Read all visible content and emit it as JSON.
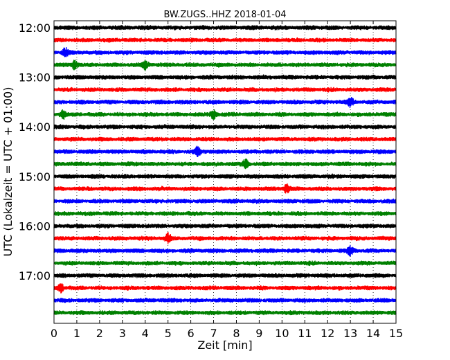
{
  "chart_data": {
    "type": "line",
    "title": "BW.ZUGS..HHZ 2018-01-04",
    "xlabel": "Zeit  [min]",
    "ylabel": "UTC (Lokalzeit = UTC + 01:00)",
    "xlim": [
      0,
      15
    ],
    "x_ticks": [
      "0",
      "1",
      "2",
      "3",
      "4",
      "5",
      "6",
      "7",
      "8",
      "9",
      "10",
      "11",
      "12",
      "13",
      "14",
      "15"
    ],
    "y_tick_labels": [
      "12:00",
      "13:00",
      "14:00",
      "15:00",
      "16:00",
      "17:00"
    ],
    "grid": "vertical dotted at each minute",
    "trace_colors": [
      "#000000",
      "#ff0000",
      "#0000ff",
      "#008000"
    ],
    "series": [
      {
        "start": "12:00",
        "color": "#000000"
      },
      {
        "start": "12:15",
        "color": "#ff0000"
      },
      {
        "start": "12:30",
        "color": "#0000ff"
      },
      {
        "start": "12:45",
        "color": "#008000"
      },
      {
        "start": "13:00",
        "color": "#000000"
      },
      {
        "start": "13:15",
        "color": "#ff0000"
      },
      {
        "start": "13:30",
        "color": "#0000ff"
      },
      {
        "start": "13:45",
        "color": "#008000"
      },
      {
        "start": "14:00",
        "color": "#000000"
      },
      {
        "start": "14:15",
        "color": "#ff0000"
      },
      {
        "start": "14:30",
        "color": "#0000ff"
      },
      {
        "start": "14:45",
        "color": "#008000"
      },
      {
        "start": "15:00",
        "color": "#000000"
      },
      {
        "start": "15:15",
        "color": "#ff0000"
      },
      {
        "start": "15:30",
        "color": "#0000ff"
      },
      {
        "start": "15:45",
        "color": "#008000"
      },
      {
        "start": "16:00",
        "color": "#000000"
      },
      {
        "start": "16:15",
        "color": "#ff0000"
      },
      {
        "start": "16:30",
        "color": "#0000ff"
      },
      {
        "start": "16:45",
        "color": "#008000"
      },
      {
        "start": "17:00",
        "color": "#000000"
      },
      {
        "start": "17:15",
        "color": "#ff0000"
      },
      {
        "start": "17:30",
        "color": "#0000ff"
      },
      {
        "start": "17:45",
        "color": "#008000"
      }
    ],
    "events": [
      {
        "row": "13:45",
        "minute": 7.0
      },
      {
        "row": "13:30",
        "minute": 13.0
      },
      {
        "row": "16:30",
        "minute": 13.0
      },
      {
        "row": "16:15",
        "minute": 5.0
      },
      {
        "row": "14:30",
        "minute": 6.3
      },
      {
        "row": "14:45",
        "minute": 8.4
      },
      {
        "row": "15:15",
        "minute": 10.2
      },
      {
        "row": "12:45",
        "minute": 4.0
      },
      {
        "row": "12:30",
        "minute": 0.5
      },
      {
        "row": "12:45",
        "minute": 0.9
      },
      {
        "row": "13:45",
        "minute": 0.4
      },
      {
        "row": "17:15",
        "minute": 0.3
      }
    ]
  }
}
